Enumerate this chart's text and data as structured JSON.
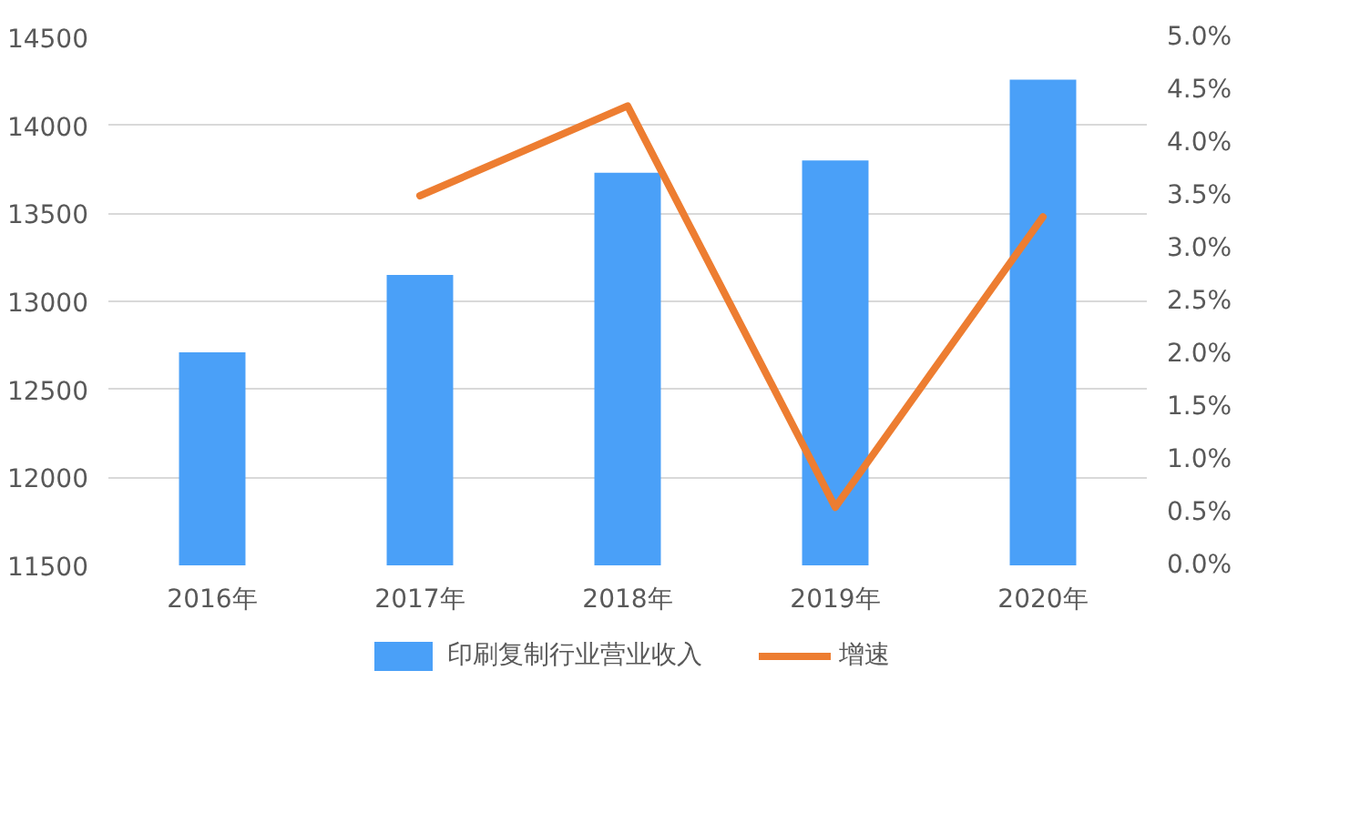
{
  "chart_data": {
    "type": "bar",
    "categories": [
      "2016年",
      "2017年",
      "2018年",
      "2019年",
      "2020年"
    ],
    "series": [
      {
        "name": "印刷复制行业营业收入",
        "color": "#4aa0f8",
        "values": [
          12710,
          13150,
          13730,
          13800,
          14260
        ]
      },
      {
        "name": "增速",
        "type": "line",
        "axis": "y2",
        "color": "#ed7d31",
        "values": [
          null,
          3.5,
          4.35,
          0.55,
          3.3
        ]
      }
    ],
    "ylim": [
      11500,
      14500
    ],
    "yticks": [
      11500,
      12000,
      12500,
      13000,
      13500,
      14000,
      14500
    ],
    "y2lim": [
      0,
      5
    ],
    "y2ticks": [
      {
        "value": 0,
        "label": "0.0%"
      },
      {
        "value": 0.5,
        "label": "0.5%"
      },
      {
        "value": 1,
        "label": "1.0%"
      },
      {
        "value": 1.5,
        "label": "1.5%"
      },
      {
        "value": 2,
        "label": "2.0%"
      },
      {
        "value": 2.5,
        "label": "2.5%"
      },
      {
        "value": 3,
        "label": "3.0%"
      },
      {
        "value": 3.5,
        "label": "3.5%"
      },
      {
        "value": 4,
        "label": "4.0%"
      },
      {
        "value": 4.5,
        "label": "4.5%"
      },
      {
        "value": 5,
        "label": "5.0%"
      }
    ],
    "grid": "y",
    "legend": "bottom",
    "marker": "none",
    "line_style": "solid"
  }
}
